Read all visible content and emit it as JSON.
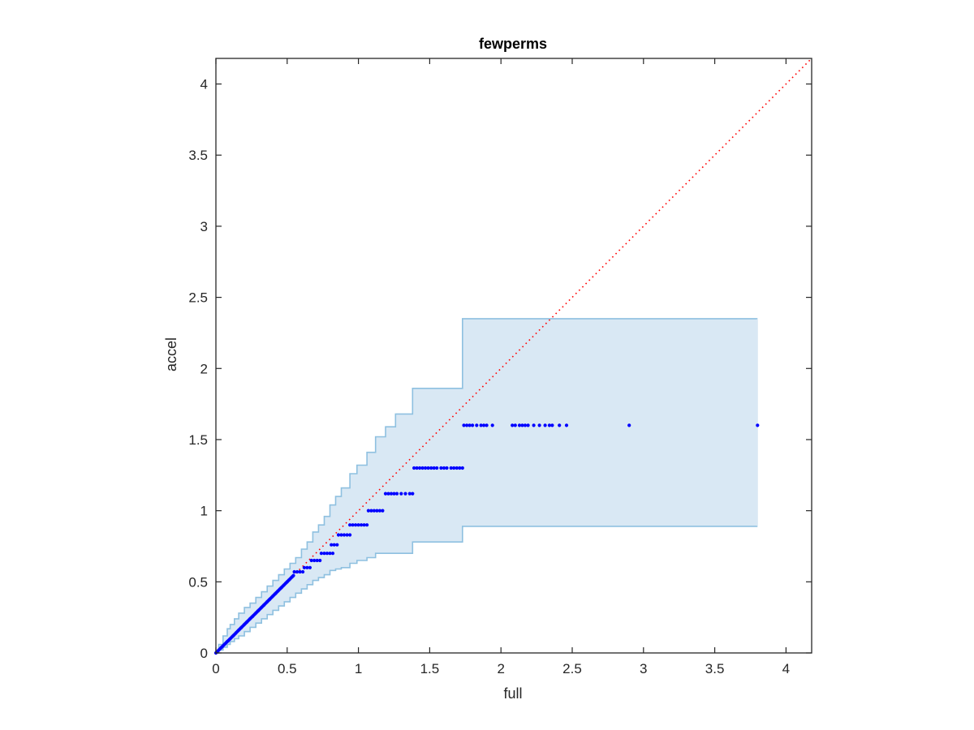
{
  "chart_data": {
    "type": "scatter",
    "title": "fewperms",
    "xlabel": "full",
    "ylabel": "accel",
    "xlim": [
      0,
      4.18
    ],
    "ylim": [
      0,
      4.18
    ],
    "xticks": [
      0,
      0.5,
      1,
      1.5,
      2,
      2.5,
      3,
      3.5,
      4
    ],
    "yticks": [
      0,
      0.5,
      1,
      1.5,
      2,
      2.5,
      3,
      3.5,
      4
    ],
    "xtick_labels": [
      "0",
      "0.5",
      "1",
      "1.5",
      "2",
      "2.5",
      "3",
      "3.5",
      "4"
    ],
    "ytick_labels": [
      "0",
      "0.5",
      "1",
      "1.5",
      "2",
      "2.5",
      "3",
      "3.5",
      "4"
    ],
    "grid": false,
    "box": true,
    "colors": {
      "points": "#0000ff",
      "band_fill": "#d9e8f4",
      "band_edge": "#8ec0e0",
      "diagonal": "#ff0000",
      "axes": "#262626"
    },
    "diagonal": {
      "x": [
        0,
        4.18
      ],
      "y": [
        0,
        4.18
      ],
      "style": "dotted"
    },
    "band": {
      "x": [
        0,
        0.02,
        0.05,
        0.08,
        0.1,
        0.13,
        0.16,
        0.2,
        0.24,
        0.28,
        0.32,
        0.36,
        0.4,
        0.44,
        0.48,
        0.52,
        0.56,
        0.6,
        0.64,
        0.68,
        0.72,
        0.76,
        0.8,
        0.84,
        0.88,
        0.94,
        0.99,
        1.06,
        1.12,
        1.19,
        1.26,
        1.38,
        1.73,
        3.8
      ],
      "upper": [
        0,
        0.06,
        0.12,
        0.17,
        0.2,
        0.24,
        0.28,
        0.32,
        0.35,
        0.39,
        0.43,
        0.47,
        0.51,
        0.55,
        0.59,
        0.63,
        0.67,
        0.73,
        0.78,
        0.85,
        0.9,
        0.96,
        1.04,
        1.1,
        1.16,
        1.26,
        1.32,
        1.41,
        1.52,
        1.59,
        1.68,
        1.86,
        2.35,
        2.35
      ],
      "lower": [
        0,
        0.02,
        0.04,
        0.06,
        0.08,
        0.1,
        0.12,
        0.15,
        0.18,
        0.21,
        0.24,
        0.27,
        0.3,
        0.33,
        0.36,
        0.39,
        0.42,
        0.45,
        0.48,
        0.51,
        0.53,
        0.55,
        0.58,
        0.59,
        0.6,
        0.63,
        0.65,
        0.67,
        0.7,
        0.7,
        0.7,
        0.78,
        0.89,
        0.89
      ]
    },
    "series": [
      {
        "diagonal_segment": {
          "x_start": 0,
          "x_end": 0.55,
          "step": 0.008
        },
        "steps": [
          {
            "y": 0.57,
            "x": [
              0.55,
              0.57,
              0.59,
              0.61
            ]
          },
          {
            "y": 0.6,
            "x": [
              0.62,
              0.64,
              0.66
            ]
          },
          {
            "y": 0.65,
            "x": [
              0.67,
              0.69,
              0.71,
              0.73
            ]
          },
          {
            "y": 0.7,
            "x": [
              0.74,
              0.76,
              0.78,
              0.8,
              0.82
            ]
          },
          {
            "y": 0.76,
            "x": [
              0.81,
              0.83,
              0.85
            ]
          },
          {
            "y": 0.83,
            "x": [
              0.86,
              0.88,
              0.9,
              0.92,
              0.94
            ]
          },
          {
            "y": 0.9,
            "x": [
              0.94,
              0.96,
              0.98,
              1.0,
              1.02,
              1.04,
              1.06
            ]
          },
          {
            "y": 1.0,
            "x": [
              1.07,
              1.09,
              1.11,
              1.13,
              1.15,
              1.17
            ]
          },
          {
            "y": 1.12,
            "x": [
              1.19,
              1.21,
              1.23,
              1.25,
              1.27,
              1.3,
              1.33,
              1.36,
              1.38
            ]
          },
          {
            "y": 1.3,
            "x": [
              1.39,
              1.41,
              1.43,
              1.45,
              1.47,
              1.49,
              1.51,
              1.53,
              1.55,
              1.58,
              1.6,
              1.62,
              1.65,
              1.67,
              1.69,
              1.71,
              1.73
            ]
          },
          {
            "y": 1.6,
            "x": [
              1.74,
              1.76,
              1.78,
              1.8,
              1.83,
              1.86,
              1.88,
              1.9,
              1.94,
              2.08,
              2.1,
              2.13,
              2.15,
              2.17,
              2.19,
              2.23,
              2.27,
              2.31,
              2.34,
              2.36,
              2.41,
              2.46,
              2.9,
              3.8
            ]
          }
        ]
      }
    ]
  }
}
